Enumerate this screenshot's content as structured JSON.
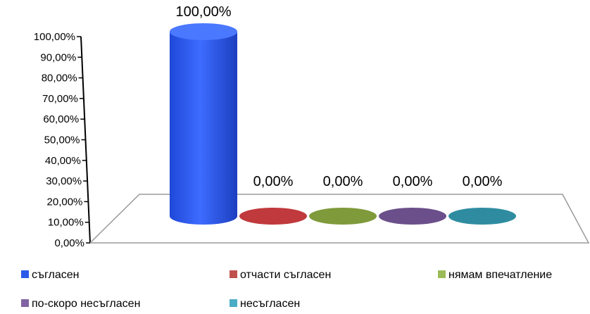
{
  "chart_data": {
    "type": "bar",
    "style": "3d-cylinder",
    "categories": [
      "съгласен",
      "отчасти съгласен",
      "нямам впечатление",
      "по-скоро несъгласен",
      "несъгласен"
    ],
    "values": [
      100,
      0,
      0,
      0,
      0
    ],
    "value_labels": [
      "100,00%",
      "0,00%",
      "0,00%",
      "0,00%",
      "0,00%"
    ],
    "series_colors": [
      "#2b59e8",
      "#c0393c",
      "#7f9a3a",
      "#6b4f8a",
      "#2f8ca0"
    ],
    "legend_colors": [
      "#2b59e8",
      "#c0504d",
      "#9bbb59",
      "#8064a2",
      "#4bacc6"
    ],
    "yticks": [
      "0,00%",
      "10,00%",
      "20,00%",
      "30,00%",
      "40,00%",
      "50,00%",
      "60,00%",
      "70,00%",
      "80,00%",
      "90,00%",
      "100,00%"
    ],
    "ylim": [
      0,
      100
    ],
    "title": "",
    "xlabel": "",
    "ylabel": "",
    "grid": false,
    "legend_position": "bottom"
  }
}
